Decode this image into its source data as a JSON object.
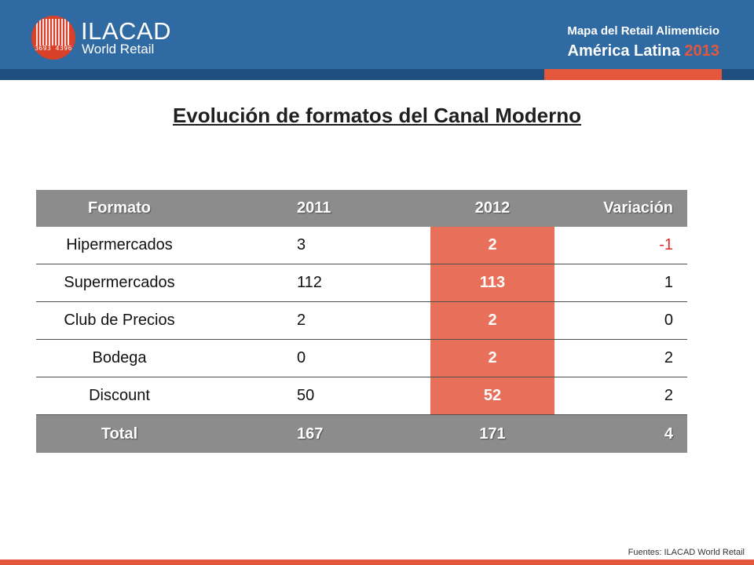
{
  "header": {
    "logo_title": "ILACAD",
    "logo_subtitle": "World Retail",
    "logo_code": "3693 4396",
    "report_title": "Mapa del Retail Alimenticio",
    "region": "América Latina",
    "year": "2013",
    "colors": {
      "band": "#2f6aa3",
      "accent": "#e4573d"
    }
  },
  "page": {
    "title": "Evolución de formatos del Canal Moderno"
  },
  "table": {
    "headers": [
      "Formato",
      "2011",
      "2012",
      "Variación"
    ],
    "rows": [
      {
        "formato": "Hipermercados",
        "y2011": "3",
        "y2012": "2",
        "variacion": "-1"
      },
      {
        "formato": "Supermercados",
        "y2011": "112",
        "y2012": "113",
        "variacion": "1"
      },
      {
        "formato": "Club de Precios",
        "y2011": "2",
        "y2012": "2",
        "variacion": "0"
      },
      {
        "formato": "Bodega",
        "y2011": "0",
        "y2012": "2",
        "variacion": "2"
      },
      {
        "formato": "Discount",
        "y2011": "50",
        "y2012": "52",
        "variacion": "2"
      }
    ],
    "total": {
      "label": "Total",
      "y2011": "167",
      "y2012": "171",
      "variacion": "4"
    },
    "colors": {
      "header": "#8c8c8c",
      "highlight_2012": "#e8705a",
      "negative": "#e02a2a"
    }
  },
  "footer": {
    "source": "Fuentes: ILACAD World Retail"
  }
}
